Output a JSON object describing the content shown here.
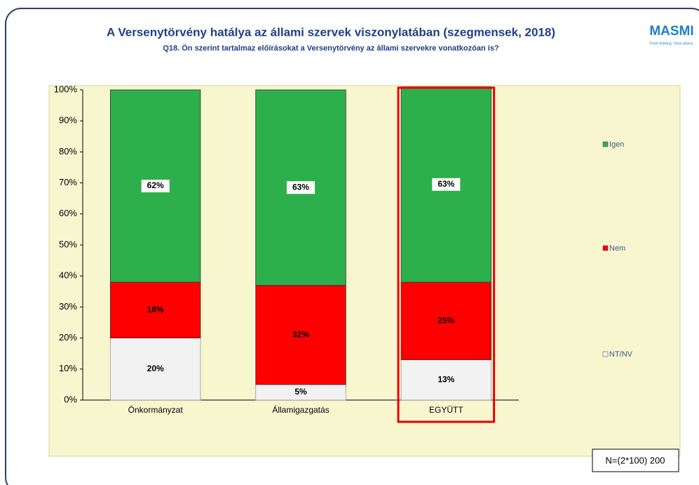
{
  "chart_data": {
    "type": "stacked_bar",
    "title": "A Versenytörvény hatálya az állami szervek viszonylatában (szegmensek, 2018)",
    "subtitle": "Q18. Ön szerint tartalmaz előírásokat a Versenytörvény az állami szervekre vonatkozóan is?",
    "brand": "MASMI",
    "brand_tagline": "Fresh thinking. Clear advice.",
    "sample_note": "N=(2*100) 200",
    "categories": [
      "Önkormányzat",
      "Államigazgatás",
      "EGYÜTT"
    ],
    "series": [
      {
        "name": "NT/NV",
        "color": "#f2f2f2",
        "values": [
          20,
          5,
          13
        ],
        "value_labels": [
          "20%",
          "5%",
          "13%"
        ]
      },
      {
        "name": "Nem",
        "color": "#ff0000",
        "values": [
          18,
          32,
          25
        ],
        "value_labels": [
          "18%",
          "32%",
          "25%"
        ]
      },
      {
        "name": "Igen",
        "color": "#2db04b",
        "values": [
          62,
          63,
          63
        ],
        "value_labels": [
          "62%",
          "63%",
          "63%"
        ]
      }
    ],
    "ylim": [
      0,
      100
    ],
    "yticks": [
      {
        "value": 0,
        "label": "0%"
      },
      {
        "value": 10,
        "label": "10%"
      },
      {
        "value": 20,
        "label": "20%"
      },
      {
        "value": 30,
        "label": "30%"
      },
      {
        "value": 40,
        "label": "40%"
      },
      {
        "value": 50,
        "label": "50%"
      },
      {
        "value": 60,
        "label": "60%"
      },
      {
        "value": 70,
        "label": "70%"
      },
      {
        "value": 80,
        "label": "80%"
      },
      {
        "value": 90,
        "label": "90%"
      },
      {
        "value": 100,
        "label": "100%"
      }
    ],
    "grid": false,
    "legend": "right"
  }
}
